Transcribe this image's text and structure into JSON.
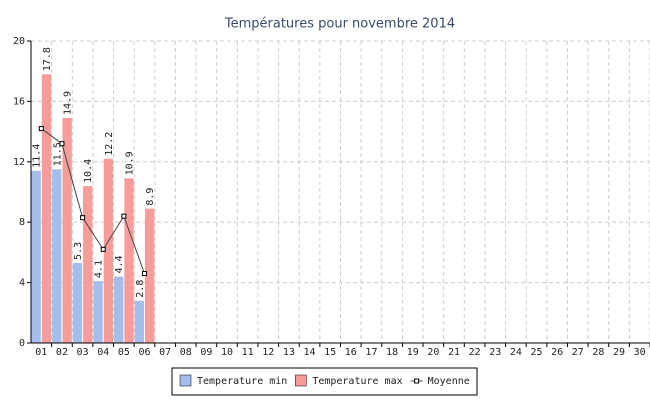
{
  "chart_data": {
    "type": "bar",
    "title": "Températures pour novembre 2014",
    "categories": [
      "01",
      "02",
      "03",
      "04",
      "05",
      "06",
      "07",
      "08",
      "09",
      "10",
      "11",
      "12",
      "13",
      "14",
      "15",
      "16",
      "17",
      "18",
      "19",
      "20",
      "21",
      "22",
      "23",
      "24",
      "25",
      "26",
      "27",
      "28",
      "29",
      "30"
    ],
    "series": [
      {
        "name": "Temperature min",
        "color": "#a4bdea",
        "values": [
          11.4,
          11.5,
          5.3,
          4.1,
          4.4,
          2.8,
          null,
          null,
          null,
          null,
          null,
          null,
          null,
          null,
          null,
          null,
          null,
          null,
          null,
          null,
          null,
          null,
          null,
          null,
          null,
          null,
          null,
          null,
          null,
          null
        ]
      },
      {
        "name": "Temperature max",
        "color": "#f79b9b",
        "values": [
          17.8,
          14.9,
          10.4,
          12.2,
          10.9,
          8.9,
          null,
          null,
          null,
          null,
          null,
          null,
          null,
          null,
          null,
          null,
          null,
          null,
          null,
          null,
          null,
          null,
          null,
          null,
          null,
          null,
          null,
          null,
          null,
          null
        ]
      },
      {
        "name": "Moyenne",
        "type": "line",
        "color": "#444444",
        "values": [
          14.2,
          13.2,
          8.3,
          6.2,
          8.4,
          4.6,
          null,
          null,
          null,
          null,
          null,
          null,
          null,
          null,
          null,
          null,
          null,
          null,
          null,
          null,
          null,
          null,
          null,
          null,
          null,
          null,
          null,
          null,
          null,
          null
        ]
      }
    ],
    "ylim": [
      0,
      20
    ],
    "yticks": [
      0,
      4,
      8,
      12,
      16,
      20
    ],
    "grid": true,
    "legend": "bottom"
  }
}
